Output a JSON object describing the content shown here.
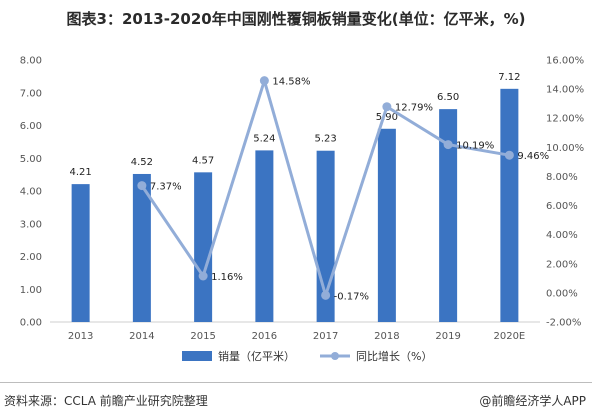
{
  "title": "图表3：2013-2020年中国刚性覆铜板销量变化(单位：亿平米，%)",
  "source": "资料来源：CCLA 前瞻产业研究院整理",
  "brand": "@前瞻经济学人APP",
  "colors": {
    "bar": "#3b74c2",
    "line": "#92add8"
  },
  "chart_data": {
    "type": "bar",
    "categories": [
      "2013",
      "2014",
      "2015",
      "2016",
      "2017",
      "2018",
      "2019",
      "2020E"
    ],
    "series": [
      {
        "name": "销量（亿平米）",
        "type": "bar",
        "axis": "left",
        "values": [
          4.21,
          4.52,
          4.57,
          5.24,
          5.23,
          5.9,
          6.5,
          7.12
        ],
        "labels": [
          "4.21",
          "4.52",
          "4.57",
          "5.24",
          "5.23",
          "5.90",
          "6.50",
          "7.12"
        ]
      },
      {
        "name": "同比增长（%）",
        "type": "line",
        "axis": "right",
        "values": [
          null,
          7.37,
          1.16,
          14.58,
          -0.17,
          12.79,
          10.19,
          9.46
        ],
        "labels": [
          "",
          "7.37%",
          "1.16%",
          "14.58%",
          "-0.17%",
          "12.79%",
          "10.19%",
          "9.46%"
        ]
      }
    ],
    "ylim_left": [
      0,
      8
    ],
    "yticks_left": [
      "0.00",
      "1.00",
      "2.00",
      "3.00",
      "4.00",
      "5.00",
      "6.00",
      "7.00",
      "8.00"
    ],
    "ylim_right": [
      -2,
      16
    ],
    "yticks_right": [
      "-2.00%",
      "0.00%",
      "2.00%",
      "4.00%",
      "6.00%",
      "8.00%",
      "10.00%",
      "12.00%",
      "14.00%",
      "16.00%"
    ],
    "legend_position": "bottom",
    "grid": false
  }
}
